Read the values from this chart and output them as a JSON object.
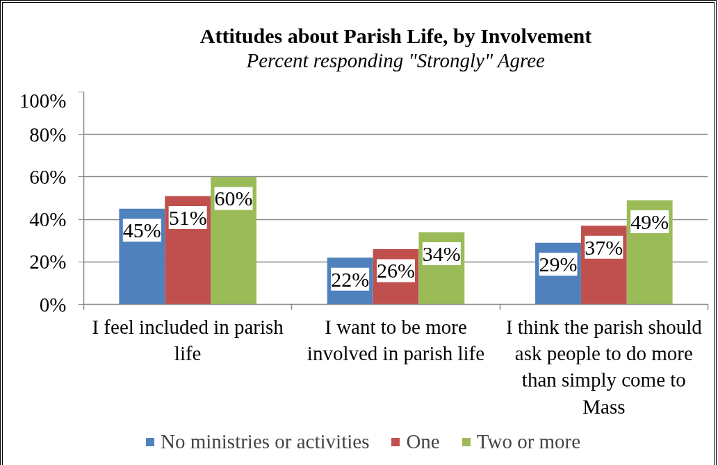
{
  "chart_data": {
    "type": "bar",
    "title": "Attitudes about Parish Life, by Involvement",
    "subtitle": "Percent responding \"Strongly\" Agree",
    "categories": [
      "I feel included in parish life",
      "I want to be more involved in parish life",
      "I think the parish should ask people to do more than simply come to Mass"
    ],
    "series": [
      {
        "name": "No ministries or activities",
        "color": "#4f81bd",
        "values": [
          45,
          22,
          29
        ],
        "value_labels": [
          "45%",
          "22%",
          "29%"
        ]
      },
      {
        "name": "One",
        "color": "#c0504d",
        "values": [
          51,
          26,
          37
        ],
        "value_labels": [
          "51%",
          "26%",
          "37%"
        ]
      },
      {
        "name": "Two or more",
        "color": "#9bbb59",
        "values": [
          60,
          34,
          49
        ],
        "value_labels": [
          "60%",
          "34%",
          "49%"
        ]
      }
    ],
    "ylim": [
      0,
      100
    ],
    "yticks": [
      {
        "value": 0,
        "label": "0%"
      },
      {
        "value": 20,
        "label": "20%"
      },
      {
        "value": 40,
        "label": "40%"
      },
      {
        "value": 60,
        "label": "60%"
      },
      {
        "value": 80,
        "label": "80%"
      },
      {
        "value": 100,
        "label": "100%"
      }
    ],
    "grid": "y",
    "legend": "bottom"
  }
}
